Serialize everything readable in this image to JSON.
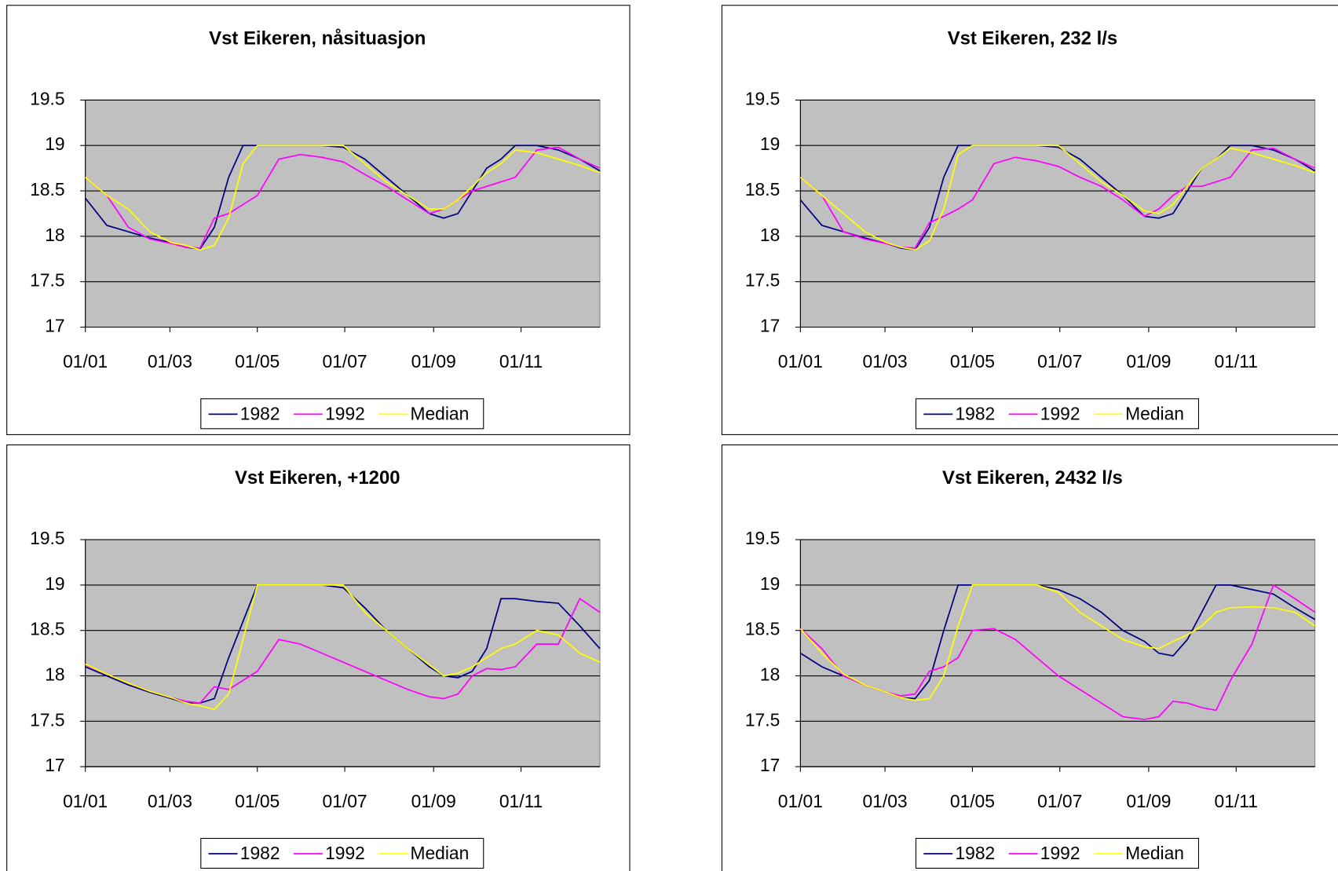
{
  "chart_data": [
    {
      "type": "line",
      "title": "Vst Eikeren, nåsituasjon",
      "x": [
        0,
        15,
        30,
        45,
        60,
        70,
        80,
        90,
        100,
        110,
        120,
        135,
        150,
        165,
        180,
        195,
        210,
        225,
        240,
        250,
        260,
        270,
        280,
        290,
        300,
        315,
        330,
        345,
        359
      ],
      "xlim": [
        0,
        359
      ],
      "xticks": [
        {
          "value": 0,
          "label": "01/01"
        },
        {
          "value": 59,
          "label": "01/03"
        },
        {
          "value": 120,
          "label": "01/05"
        },
        {
          "value": 181,
          "label": "01/07"
        },
        {
          "value": 243,
          "label": "01/09"
        },
        {
          "value": 304,
          "label": "01/11"
        }
      ],
      "ylim": [
        17,
        19.5
      ],
      "yticks": [
        17,
        17.5,
        18,
        18.5,
        19,
        19.5
      ],
      "grid": true,
      "legend": "bottom",
      "series": [
        {
          "name": "1982",
          "color": "#000080",
          "values": [
            18.42,
            18.12,
            18.05,
            17.98,
            17.93,
            17.88,
            17.86,
            18.1,
            18.65,
            19,
            19,
            19,
            19,
            19,
            18.98,
            18.85,
            18.65,
            18.45,
            18.25,
            18.2,
            18.25,
            18.5,
            18.75,
            18.85,
            19,
            19,
            18.95,
            18.85,
            18.72
          ]
        },
        {
          "name": "1992",
          "color": "#ff00ff",
          "values": [
            18.65,
            18.45,
            18.1,
            17.97,
            17.92,
            17.88,
            17.87,
            18.2,
            18.25,
            18.35,
            18.45,
            18.85,
            18.9,
            18.87,
            18.82,
            18.68,
            18.55,
            18.4,
            18.25,
            18.3,
            18.4,
            18.5,
            18.55,
            18.6,
            18.65,
            18.95,
            18.98,
            18.85,
            18.75
          ]
        },
        {
          "name": "Median",
          "color": "#ffff00",
          "values": [
            18.65,
            18.45,
            18.3,
            18.05,
            17.93,
            17.9,
            17.85,
            17.9,
            18.2,
            18.8,
            19,
            19,
            19,
            19,
            19,
            18.8,
            18.6,
            18.45,
            18.3,
            18.3,
            18.4,
            18.55,
            18.7,
            18.8,
            18.95,
            18.92,
            18.85,
            18.78,
            18.7
          ]
        }
      ]
    },
    {
      "type": "line",
      "title": "Vst Eikeren, 232 l/s",
      "x": [
        0,
        15,
        30,
        45,
        60,
        70,
        80,
        90,
        100,
        110,
        120,
        135,
        150,
        165,
        180,
        195,
        210,
        225,
        240,
        250,
        260,
        270,
        280,
        290,
        300,
        315,
        330,
        345,
        359
      ],
      "xlim": [
        0,
        359
      ],
      "xticks": [
        {
          "value": 0,
          "label": "01/01"
        },
        {
          "value": 59,
          "label": "01/03"
        },
        {
          "value": 120,
          "label": "01/05"
        },
        {
          "value": 181,
          "label": "01/07"
        },
        {
          "value": 243,
          "label": "01/09"
        },
        {
          "value": 304,
          "label": "01/11"
        }
      ],
      "ylim": [
        17,
        19.5
      ],
      "yticks": [
        17,
        17.5,
        18,
        18.5,
        19,
        19.5
      ],
      "grid": true,
      "legend": "bottom",
      "series": [
        {
          "name": "1982",
          "color": "#000080",
          "values": [
            18.4,
            18.12,
            18.05,
            17.98,
            17.92,
            17.87,
            17.85,
            18.1,
            18.65,
            19,
            19,
            19,
            19,
            19,
            18.98,
            18.85,
            18.65,
            18.45,
            18.22,
            18.2,
            18.25,
            18.5,
            18.75,
            18.85,
            19,
            19,
            18.95,
            18.85,
            18.72
          ]
        },
        {
          "name": "1992",
          "color": "#ff00ff",
          "values": [
            18.65,
            18.45,
            18.05,
            17.97,
            17.92,
            17.88,
            17.87,
            18.15,
            18.22,
            18.3,
            18.4,
            18.8,
            18.87,
            18.83,
            18.77,
            18.65,
            18.55,
            18.4,
            18.22,
            18.3,
            18.45,
            18.55,
            18.55,
            18.6,
            18.65,
            18.95,
            18.97,
            18.85,
            18.75
          ]
        },
        {
          "name": "Median",
          "color": "#ffff00",
          "values": [
            18.65,
            18.45,
            18.25,
            18.05,
            17.93,
            17.88,
            17.85,
            17.95,
            18.3,
            18.9,
            19,
            19,
            19,
            19,
            19,
            18.8,
            18.6,
            18.45,
            18.28,
            18.25,
            18.35,
            18.55,
            18.75,
            18.85,
            18.97,
            18.92,
            18.85,
            18.78,
            18.7
          ]
        }
      ]
    },
    {
      "type": "line",
      "title": "Vst Eikeren, +1200",
      "x": [
        0,
        15,
        30,
        45,
        60,
        70,
        80,
        90,
        100,
        110,
        120,
        135,
        150,
        165,
        180,
        195,
        210,
        225,
        240,
        250,
        260,
        270,
        280,
        290,
        300,
        315,
        330,
        345,
        359
      ],
      "xlim": [
        0,
        359
      ],
      "xticks": [
        {
          "value": 0,
          "label": "01/01"
        },
        {
          "value": 59,
          "label": "01/03"
        },
        {
          "value": 120,
          "label": "01/05"
        },
        {
          "value": 181,
          "label": "01/07"
        },
        {
          "value": 243,
          "label": "01/09"
        },
        {
          "value": 304,
          "label": "01/11"
        }
      ],
      "ylim": [
        17,
        19.5
      ],
      "yticks": [
        17,
        17.5,
        18,
        18.5,
        19,
        19.5
      ],
      "grid": true,
      "legend": "bottom",
      "series": [
        {
          "name": "1982",
          "color": "#000080",
          "values": [
            18.1,
            18.0,
            17.9,
            17.82,
            17.75,
            17.7,
            17.7,
            17.75,
            18.2,
            18.6,
            19,
            19,
            19,
            19,
            18.97,
            18.75,
            18.5,
            18.3,
            18.1,
            18.0,
            17.98,
            18.05,
            18.3,
            18.85,
            18.85,
            18.82,
            18.8,
            18.55,
            18.3
          ]
        },
        {
          "name": "1992",
          "color": "#ff00ff",
          "values": [
            18.12,
            18.02,
            17.92,
            17.83,
            17.76,
            17.72,
            17.7,
            17.88,
            17.85,
            17.95,
            18.05,
            18.4,
            18.35,
            18.25,
            18.15,
            18.05,
            17.95,
            17.85,
            17.77,
            17.75,
            17.8,
            18.0,
            18.08,
            18.07,
            18.1,
            18.35,
            18.35,
            18.85,
            18.7
          ]
        },
        {
          "name": "Median",
          "color": "#ffff00",
          "values": [
            18.13,
            18.02,
            17.92,
            17.83,
            17.76,
            17.7,
            17.67,
            17.63,
            17.8,
            18.4,
            19,
            19,
            19,
            19,
            19,
            18.7,
            18.5,
            18.3,
            18.12,
            18.0,
            18.03,
            18.1,
            18.2,
            18.3,
            18.35,
            18.5,
            18.45,
            18.25,
            18.15
          ]
        }
      ]
    },
    {
      "type": "line",
      "title": "Vst Eikeren, 2432 l/s",
      "x": [
        0,
        15,
        30,
        45,
        60,
        70,
        80,
        90,
        100,
        110,
        120,
        135,
        150,
        165,
        180,
        195,
        210,
        225,
        240,
        250,
        260,
        270,
        280,
        290,
        300,
        315,
        330,
        345,
        359
      ],
      "xlim": [
        0,
        359
      ],
      "xticks": [
        {
          "value": 0,
          "label": "01/01"
        },
        {
          "value": 59,
          "label": "01/03"
        },
        {
          "value": 120,
          "label": "01/05"
        },
        {
          "value": 181,
          "label": "01/07"
        },
        {
          "value": 243,
          "label": "01/09"
        },
        {
          "value": 304,
          "label": "01/11"
        }
      ],
      "ylim": [
        17,
        19.5
      ],
      "yticks": [
        17,
        17.5,
        18,
        18.5,
        19,
        19.5
      ],
      "grid": true,
      "legend": "bottom",
      "series": [
        {
          "name": "1982",
          "color": "#000080",
          "values": [
            18.25,
            18.1,
            18.0,
            17.9,
            17.82,
            17.76,
            17.75,
            17.95,
            18.5,
            19,
            19,
            19,
            19,
            19,
            18.95,
            18.85,
            18.7,
            18.5,
            18.38,
            18.25,
            18.22,
            18.4,
            18.7,
            19,
            19,
            18.95,
            18.9,
            18.75,
            18.62
          ]
        },
        {
          "name": "1992",
          "color": "#ff00ff",
          "values": [
            18.52,
            18.3,
            18.0,
            17.9,
            17.82,
            17.78,
            17.8,
            18.05,
            18.1,
            18.2,
            18.5,
            18.52,
            18.4,
            18.2,
            18.0,
            17.85,
            17.7,
            17.55,
            17.52,
            17.55,
            17.72,
            17.7,
            17.65,
            17.62,
            17.95,
            18.35,
            19.0,
            18.85,
            18.7
          ]
        },
        {
          "name": "Median",
          "color": "#ffff00",
          "values": [
            18.52,
            18.25,
            18.02,
            17.9,
            17.82,
            17.76,
            17.73,
            17.75,
            18.0,
            18.55,
            19,
            19,
            19,
            19,
            18.92,
            18.7,
            18.55,
            18.4,
            18.32,
            18.3,
            18.38,
            18.45,
            18.55,
            18.7,
            18.75,
            18.76,
            18.75,
            18.7,
            18.55
          ]
        }
      ]
    }
  ]
}
